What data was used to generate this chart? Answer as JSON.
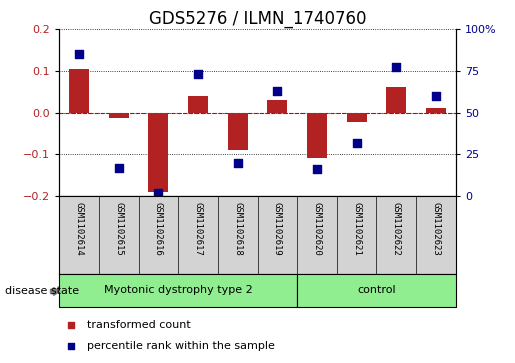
{
  "title": "GDS5276 / ILMN_1740760",
  "samples": [
    "GSM1102614",
    "GSM1102615",
    "GSM1102616",
    "GSM1102617",
    "GSM1102618",
    "GSM1102619",
    "GSM1102620",
    "GSM1102621",
    "GSM1102622",
    "GSM1102623"
  ],
  "red_bars": [
    0.105,
    -0.012,
    -0.19,
    0.04,
    -0.09,
    0.03,
    -0.11,
    -0.022,
    0.06,
    0.012
  ],
  "blue_dots": [
    85,
    17,
    2,
    73,
    20,
    63,
    16,
    32,
    77,
    60
  ],
  "ylim_left": [
    -0.2,
    0.2
  ],
  "ylim_right": [
    0,
    100
  ],
  "yticks_left": [
    -0.2,
    -0.1,
    0.0,
    0.1,
    0.2
  ],
  "yticks_right": [
    0,
    25,
    50,
    75,
    100
  ],
  "ytick_labels_right": [
    "0",
    "25",
    "50",
    "75",
    "100%"
  ],
  "group1_label": "Myotonic dystrophy type 2",
  "group2_label": "control",
  "group1_count": 6,
  "group2_count": 4,
  "disease_state_label": "disease state",
  "legend_red": "transformed count",
  "legend_blue": "percentile rank within the sample",
  "bar_color": "#b22222",
  "dot_color": "#00008b",
  "bar_width": 0.5,
  "dot_size": 28,
  "group_color": "#90ee90",
  "tick_area_color": "#d3d3d3",
  "hline_color": "#cc0000",
  "grid_color": "#000000",
  "title_fontsize": 12,
  "tick_fontsize": 8,
  "sample_fontsize": 6.5,
  "group_fontsize": 8,
  "legend_fontsize": 8
}
